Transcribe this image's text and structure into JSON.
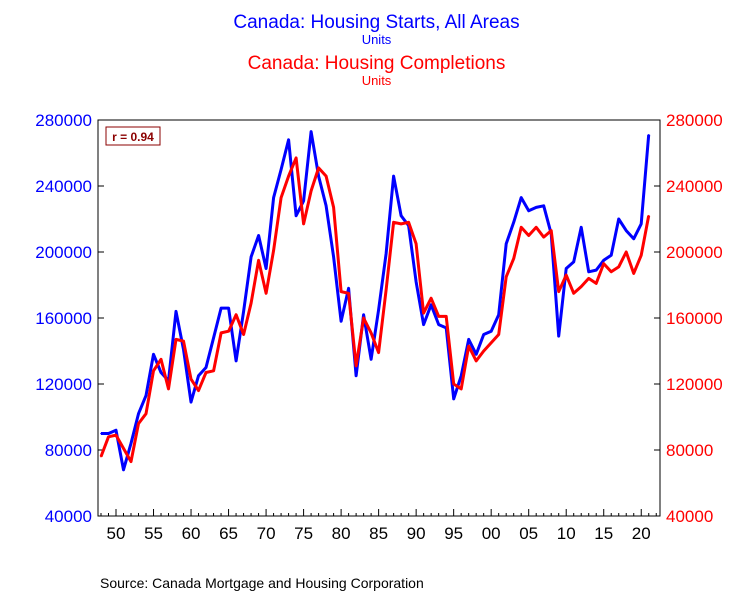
{
  "titles": {
    "starts_title": "Canada: Housing Starts, All Areas",
    "starts_units": "Units",
    "completions_title": "Canada: Housing Completions",
    "completions_units": "Units"
  },
  "colors": {
    "starts": "#0000ff",
    "completions": "#ff0000",
    "axis": "#000000"
  },
  "annotation": "r = 0.94",
  "source": "Source:  Canada Mortgage and Housing Corporation",
  "chart_data": {
    "type": "line",
    "title": "Canada: Housing Starts, All Areas / Canada: Housing Completions",
    "xlabel": "",
    "ylabel": "Units",
    "x_range": [
      1948,
      2021
    ],
    "ylim": [
      40000,
      280000
    ],
    "y_ticks": [
      40000,
      80000,
      120000,
      160000,
      200000,
      240000,
      280000
    ],
    "x_ticks": [
      1950,
      1955,
      1960,
      1965,
      1970,
      1975,
      1980,
      1985,
      1990,
      1995,
      2000,
      2005,
      2010,
      2015,
      2020
    ],
    "x_tick_labels": [
      "50",
      "55",
      "60",
      "65",
      "70",
      "75",
      "80",
      "85",
      "90",
      "95",
      "00",
      "05",
      "10",
      "15",
      "20"
    ],
    "grid": false,
    "series": [
      {
        "name": "Housing Starts, All Areas",
        "axis": "left",
        "color": "#0000ff",
        "x": [
          1948,
          1949,
          1950,
          1951,
          1952,
          1953,
          1954,
          1955,
          1956,
          1957,
          1958,
          1959,
          1960,
          1961,
          1962,
          1963,
          1964,
          1965,
          1966,
          1967,
          1968,
          1969,
          1970,
          1971,
          1972,
          1973,
          1974,
          1975,
          1976,
          1977,
          1978,
          1979,
          1980,
          1981,
          1982,
          1983,
          1984,
          1985,
          1986,
          1987,
          1988,
          1989,
          1990,
          1991,
          1992,
          1993,
          1994,
          1995,
          1996,
          1997,
          1998,
          1999,
          2000,
          2001,
          2002,
          2003,
          2004,
          2005,
          2006,
          2007,
          2008,
          2009,
          2010,
          2011,
          2012,
          2013,
          2014,
          2015,
          2016,
          2017,
          2018,
          2019,
          2020,
          2021
        ],
        "values": [
          90000,
          90000,
          92000,
          68000,
          84000,
          102000,
          113000,
          138000,
          127000,
          122000,
          164000,
          141000,
          109000,
          125000,
          130000,
          148000,
          166000,
          166000,
          134000,
          164000,
          197000,
          210000,
          190000,
          233000,
          250000,
          268000,
          222000,
          231000,
          273000,
          246000,
          228000,
          197000,
          158000,
          178000,
          125000,
          162000,
          135000,
          165000,
          199000,
          246000,
          222000,
          216000,
          182000,
          156000,
          168000,
          156000,
          154000,
          111000,
          125000,
          147000,
          138000,
          150000,
          152000,
          162000,
          205000,
          218000,
          233000,
          225000,
          227000,
          228000,
          211000,
          149000,
          190000,
          194000,
          215000,
          188000,
          189000,
          195000,
          198000,
          220000,
          213000,
          208000,
          217000,
          271000
        ]
      },
      {
        "name": "Housing Completions",
        "axis": "right",
        "color": "#ff0000",
        "x": [
          1948,
          1949,
          1950,
          1951,
          1952,
          1953,
          1954,
          1955,
          1956,
          1957,
          1958,
          1959,
          1960,
          1961,
          1962,
          1963,
          1964,
          1965,
          1966,
          1967,
          1968,
          1969,
          1970,
          1971,
          1972,
          1973,
          1974,
          1975,
          1976,
          1977,
          1978,
          1979,
          1980,
          1981,
          1982,
          1983,
          1984,
          1985,
          1986,
          1987,
          1988,
          1989,
          1990,
          1991,
          1992,
          1993,
          1994,
          1995,
          1996,
          1997,
          1998,
          1999,
          2000,
          2001,
          2002,
          2003,
          2004,
          2005,
          2006,
          2007,
          2008,
          2009,
          2010,
          2011,
          2012,
          2013,
          2014,
          2015,
          2016,
          2017,
          2018,
          2019,
          2020,
          2021
        ],
        "values": [
          76000,
          88000,
          89000,
          81000,
          73000,
          96000,
          102000,
          128000,
          135000,
          117000,
          147000,
          146000,
          123000,
          116000,
          127000,
          128000,
          151000,
          152000,
          162000,
          150000,
          169000,
          195000,
          175000,
          201000,
          233000,
          246000,
          257000,
          217000,
          237000,
          251000,
          246000,
          227000,
          176000,
          175000,
          131000,
          160000,
          151000,
          139000,
          177000,
          218000,
          217000,
          218000,
          205000,
          163000,
          172000,
          161000,
          161000,
          120000,
          117000,
          143000,
          134000,
          140000,
          145000,
          150000,
          185000,
          196000,
          215000,
          210000,
          215000,
          209000,
          213000,
          176000,
          186000,
          175000,
          179000,
          184000,
          181000,
          193000,
          188000,
          191000,
          200000,
          187000,
          198000,
          222000
        ]
      }
    ]
  }
}
